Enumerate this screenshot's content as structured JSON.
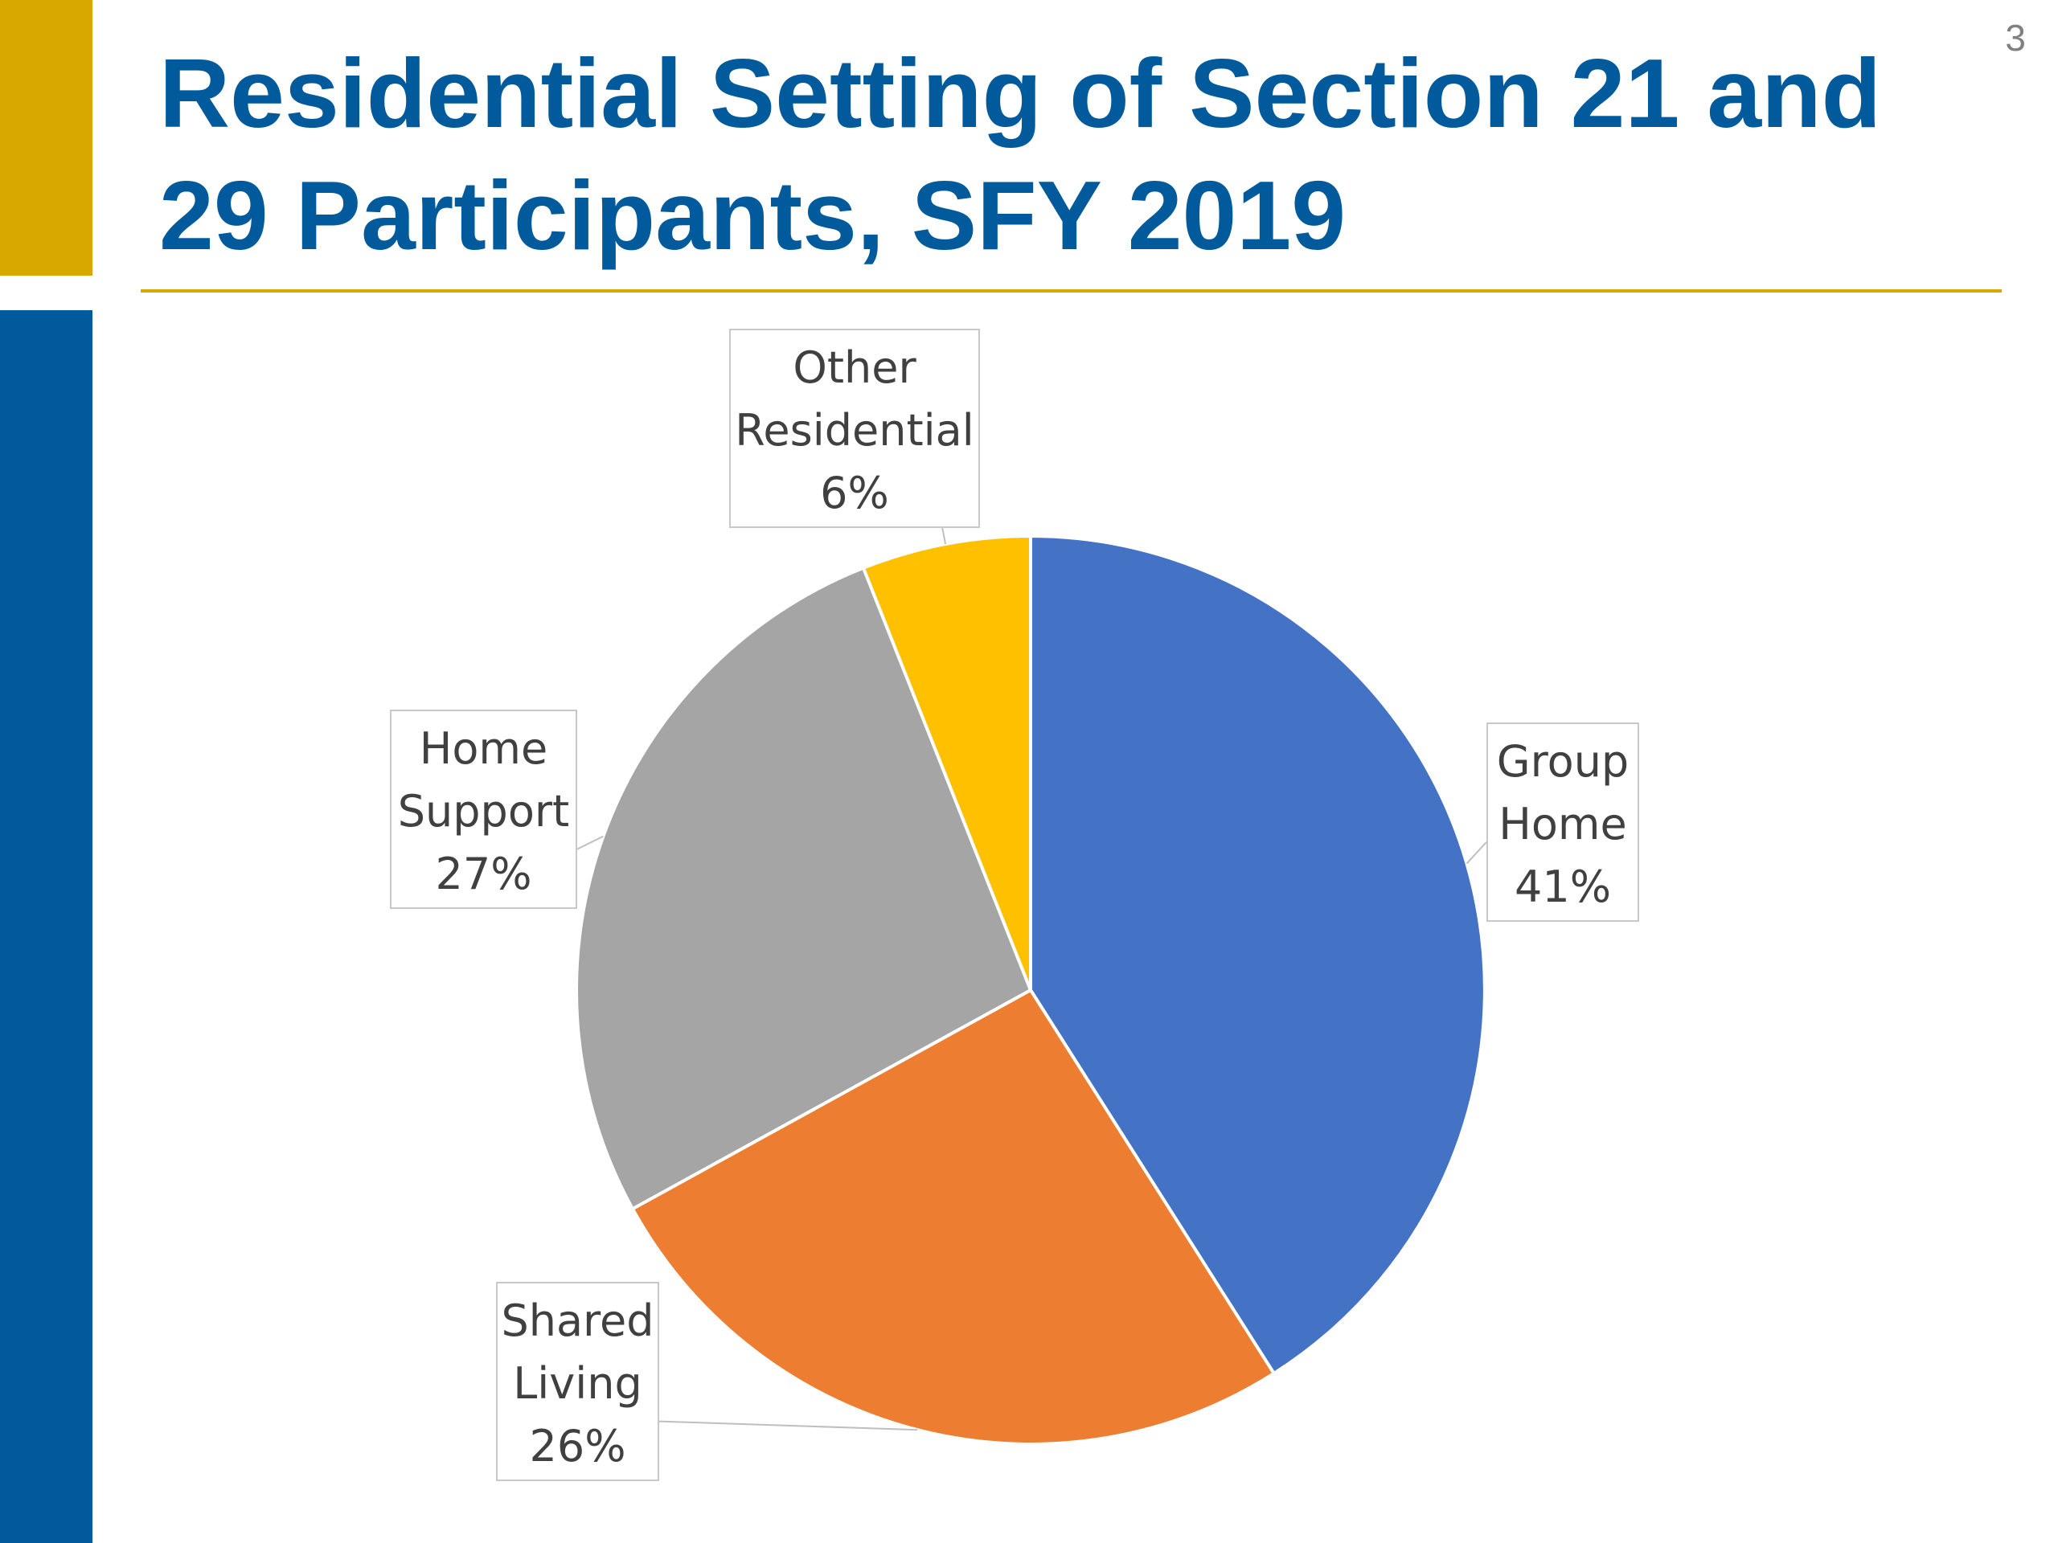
{
  "slide": {
    "number": "3",
    "title": "Residential Setting of Section 21 and 29 Participants, SFY 2019",
    "colors": {
      "title": "#005A9C",
      "accent_gold": "#D9A800",
      "accent_blue": "#005A9C"
    }
  },
  "chart_data": {
    "type": "pie",
    "title": "",
    "slices": [
      {
        "label_line1": "Group",
        "label_line2": "Home",
        "value_text": "41%",
        "value": 41,
        "color": "#4472C4"
      },
      {
        "label_line1": "Shared",
        "label_line2": "Living",
        "value_text": "26%",
        "value": 26,
        "color": "#ED7D31"
      },
      {
        "label_line1": "Home",
        "label_line2": "Support",
        "value_text": "27%",
        "value": 27,
        "color": "#A5A5A5"
      },
      {
        "label_line1": "Other",
        "label_line2": "Residential",
        "value_text": "6%",
        "value": 6,
        "color": "#FFC000"
      }
    ],
    "start_angle": "12 o'clock",
    "direction": "clockwise",
    "legend": "none"
  }
}
